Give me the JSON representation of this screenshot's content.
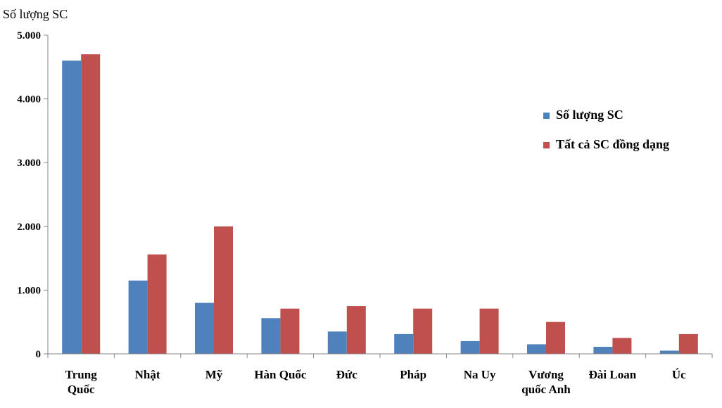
{
  "chart_data": {
    "type": "bar",
    "ylabel": "Số lượng SC",
    "ylim": [
      0,
      5000
    ],
    "yticks": [
      "0",
      "1.000",
      "2.000",
      "3.000",
      "4.000",
      "5.000"
    ],
    "ytick_values": [
      0,
      1000,
      2000,
      3000,
      4000,
      5000
    ],
    "grid": false,
    "legend_position": "right",
    "categories": [
      [
        "Trung",
        "Quốc"
      ],
      [
        "Nhật"
      ],
      [
        "Mỹ"
      ],
      [
        "Hàn Quốc"
      ],
      [
        "Đức"
      ],
      [
        "Pháp"
      ],
      [
        "Na Uy"
      ],
      [
        "Vương",
        "quốc Anh"
      ],
      [
        "Đài Loan"
      ],
      [
        "Úc"
      ]
    ],
    "series": [
      {
        "name": "Số lượng SC",
        "color": "#4F81BD",
        "values": [
          4600,
          1150,
          800,
          560,
          350,
          310,
          200,
          150,
          110,
          50
        ]
      },
      {
        "name": "Tất cả SC đồng dạng",
        "color": "#C0504D",
        "values": [
          4700,
          1560,
          2000,
          710,
          750,
          710,
          710,
          500,
          250,
          310
        ]
      }
    ]
  }
}
